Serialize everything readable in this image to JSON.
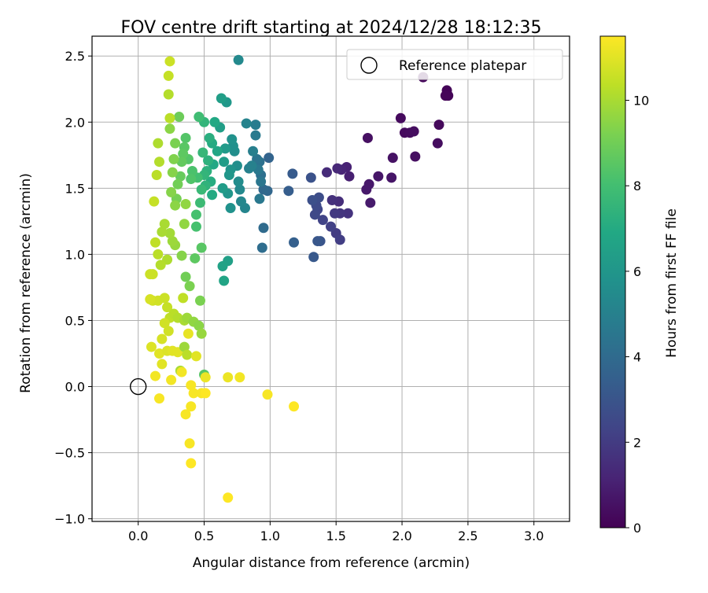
{
  "chart_data": {
    "type": "scatter",
    "title": "FOV centre drift starting at 2024/12/28 18:12:35",
    "xlabel": "Angular distance from reference (arcmin)",
    "ylabel": "Rotation from reference (arcmin)",
    "xlim": [
      -0.35,
      3.27
    ],
    "ylim": [
      -1.02,
      2.65
    ],
    "xticks": [
      0.0,
      0.5,
      1.0,
      1.5,
      2.0,
      2.5,
      3.0
    ],
    "xtick_labels": [
      "0.0",
      "0.5",
      "1.0",
      "1.5",
      "2.0",
      "2.5",
      "3.0"
    ],
    "yticks": [
      -1.0,
      -0.5,
      0.0,
      0.5,
      1.0,
      1.5,
      2.0,
      2.5
    ],
    "ytick_labels": [
      "−1.0",
      "−0.5",
      "0.0",
      "0.5",
      "1.0",
      "1.5",
      "2.0",
      "2.5"
    ],
    "grid": true,
    "legend": {
      "location": "top-right",
      "label": "Reference platepar"
    },
    "colorbar": {
      "label": "Hours from first FF file",
      "colormap": "viridis",
      "range": [
        0,
        11.5
      ],
      "ticks": [
        0,
        2,
        4,
        6,
        8,
        10
      ],
      "tick_labels": [
        "0",
        "2",
        "4",
        "6",
        "8",
        "10"
      ]
    },
    "reference_point": {
      "x": 0.0,
      "y": 0.0
    },
    "points": [
      [
        2.34,
        2.24,
        0.1
      ],
      [
        2.35,
        2.2,
        0.1
      ],
      [
        2.33,
        2.2,
        0.15
      ],
      [
        2.16,
        2.34,
        0.2
      ],
      [
        2.28,
        1.98,
        0.25
      ],
      [
        1.99,
        2.03,
        0.3
      ],
      [
        2.02,
        1.92,
        0.3
      ],
      [
        2.06,
        1.92,
        0.35
      ],
      [
        2.09,
        1.93,
        0.4
      ],
      [
        2.27,
        1.84,
        0.4
      ],
      [
        2.1,
        1.74,
        0.45
      ],
      [
        1.74,
        1.88,
        0.5
      ],
      [
        1.93,
        1.73,
        0.55
      ],
      [
        1.92,
        1.58,
        0.65
      ],
      [
        1.82,
        1.59,
        0.7
      ],
      [
        1.75,
        1.53,
        0.75
      ],
      [
        1.73,
        1.49,
        0.8
      ],
      [
        1.76,
        1.39,
        0.85
      ],
      [
        1.6,
        1.59,
        1.0
      ],
      [
        1.58,
        1.66,
        1.1
      ],
      [
        1.54,
        1.64,
        1.2
      ],
      [
        1.51,
        1.65,
        1.3
      ],
      [
        1.43,
        1.62,
        1.4
      ],
      [
        1.52,
        1.4,
        1.5
      ],
      [
        1.47,
        1.41,
        1.6
      ],
      [
        1.59,
        1.31,
        1.7
      ],
      [
        1.53,
        1.31,
        1.8
      ],
      [
        1.49,
        1.31,
        1.9
      ],
      [
        1.5,
        1.16,
        2.0
      ],
      [
        1.53,
        1.11,
        2.1
      ],
      [
        1.46,
        1.21,
        2.2
      ],
      [
        1.4,
        1.26,
        2.3
      ],
      [
        1.36,
        1.34,
        2.4
      ],
      [
        1.34,
        1.3,
        2.5
      ],
      [
        1.35,
        1.37,
        2.6
      ],
      [
        1.37,
        1.43,
        2.7
      ],
      [
        1.32,
        1.41,
        2.8
      ],
      [
        1.31,
        1.58,
        2.9
      ],
      [
        1.38,
        1.1,
        3.0
      ],
      [
        1.36,
        1.1,
        3.1
      ],
      [
        1.33,
        0.98,
        3.2
      ],
      [
        1.17,
        1.61,
        3.3
      ],
      [
        1.14,
        1.48,
        3.4
      ],
      [
        1.18,
        1.09,
        3.5
      ],
      [
        0.99,
        1.73,
        3.7
      ],
      [
        0.98,
        1.48,
        3.8
      ],
      [
        0.95,
        1.49,
        3.9
      ],
      [
        0.95,
        1.2,
        4.0
      ],
      [
        0.94,
        1.05,
        4.1
      ],
      [
        0.93,
        1.6,
        4.2
      ],
      [
        0.92,
        1.7,
        4.3
      ],
      [
        0.9,
        1.72,
        4.4
      ],
      [
        0.93,
        1.55,
        4.5
      ],
      [
        0.91,
        1.64,
        4.6
      ],
      [
        0.92,
        1.42,
        4.6
      ],
      [
        0.89,
        1.9,
        4.7
      ],
      [
        0.89,
        1.98,
        4.8
      ],
      [
        0.87,
        1.78,
        4.9
      ],
      [
        0.86,
        1.67,
        5.0
      ],
      [
        0.84,
        1.65,
        5.0
      ],
      [
        0.82,
        1.99,
        5.1
      ],
      [
        0.81,
        1.35,
        5.2
      ],
      [
        0.78,
        1.4,
        5.3
      ],
      [
        0.77,
        1.49,
        5.4
      ],
      [
        0.76,
        2.47,
        5.4
      ],
      [
        0.76,
        1.55,
        5.5
      ],
      [
        0.75,
        1.67,
        5.6
      ],
      [
        0.73,
        1.78,
        5.6
      ],
      [
        0.72,
        1.82,
        5.7
      ],
      [
        0.71,
        1.87,
        5.8
      ],
      [
        0.7,
        1.35,
        5.8
      ],
      [
        0.7,
        1.64,
        5.9
      ],
      [
        0.69,
        1.6,
        6.0
      ],
      [
        0.68,
        1.46,
        6.0
      ],
      [
        0.67,
        2.15,
        6.1
      ],
      [
        0.66,
        1.8,
        6.2
      ],
      [
        0.65,
        1.7,
        6.3
      ],
      [
        0.64,
        1.5,
        6.3
      ],
      [
        0.63,
        2.18,
        6.4
      ],
      [
        0.62,
        1.96,
        6.4
      ],
      [
        0.68,
        0.95,
        6.5
      ],
      [
        0.64,
        0.91,
        6.6
      ],
      [
        0.65,
        0.8,
        6.7
      ],
      [
        0.6,
        1.78,
        6.8
      ],
      [
        0.58,
        2.0,
        6.9
      ],
      [
        0.57,
        1.68,
        6.9
      ],
      [
        0.56,
        1.45,
        7.0
      ],
      [
        0.56,
        1.84,
        7.0
      ],
      [
        0.55,
        1.55,
        7.1
      ],
      [
        0.54,
        1.88,
        7.2
      ],
      [
        0.53,
        1.71,
        7.3
      ],
      [
        0.52,
        1.63,
        7.3
      ],
      [
        0.51,
        1.52,
        7.4
      ],
      [
        0.5,
        1.6,
        7.5
      ],
      [
        0.5,
        2.0,
        7.5
      ],
      [
        0.49,
        1.77,
        7.6
      ],
      [
        0.48,
        1.49,
        7.7
      ],
      [
        0.47,
        1.39,
        7.8
      ],
      [
        0.46,
        2.04,
        7.9
      ],
      [
        0.45,
        1.58,
        8.0
      ],
      [
        0.44,
        1.21,
        8.1
      ],
      [
        0.44,
        1.3,
        8.1
      ],
      [
        0.41,
        1.63,
        8.2
      ],
      [
        0.4,
        1.57,
        8.3
      ],
      [
        0.38,
        1.72,
        8.4
      ],
      [
        0.36,
        1.88,
        8.4
      ],
      [
        0.35,
        1.81,
        8.5
      ],
      [
        0.34,
        1.76,
        8.6
      ],
      [
        0.33,
        1.7,
        8.7
      ],
      [
        0.32,
        1.59,
        8.8
      ],
      [
        0.31,
        2.04,
        8.9
      ],
      [
        0.3,
        1.53,
        9.0
      ],
      [
        0.29,
        1.42,
        9.1
      ],
      [
        0.28,
        1.84,
        9.2
      ],
      [
        0.27,
        1.72,
        9.3
      ],
      [
        0.26,
        1.62,
        9.4
      ],
      [
        0.25,
        1.47,
        9.4
      ],
      [
        0.24,
        1.95,
        9.5
      ],
      [
        0.28,
        1.37,
        9.5
      ],
      [
        0.36,
        1.38,
        9.6
      ],
      [
        0.35,
        1.23,
        9.6
      ],
      [
        0.48,
        1.05,
        8.5
      ],
      [
        0.43,
        0.97,
        8.6
      ],
      [
        0.36,
        0.83,
        9.0
      ],
      [
        0.39,
        0.76,
        9.2
      ],
      [
        0.33,
        0.99,
        9.4
      ],
      [
        0.28,
        1.07,
        9.7
      ],
      [
        0.26,
        1.1,
        9.8
      ],
      [
        0.24,
        1.16,
        9.9
      ],
      [
        0.2,
        1.23,
        10.0
      ],
      [
        0.18,
        1.17,
        10.0
      ],
      [
        0.22,
        0.96,
        10.1
      ],
      [
        0.17,
        0.92,
        10.2
      ],
      [
        0.15,
        1.0,
        10.3
      ],
      [
        0.13,
        1.09,
        10.4
      ],
      [
        0.12,
        1.4,
        10.5
      ],
      [
        0.14,
        1.6,
        10.3
      ],
      [
        0.16,
        1.7,
        10.2
      ],
      [
        0.15,
        1.84,
        10.1
      ],
      [
        0.23,
        2.21,
        10.2
      ],
      [
        0.24,
        2.03,
        10.3
      ],
      [
        0.23,
        2.35,
        10.5
      ],
      [
        0.24,
        2.46,
        10.6
      ],
      [
        0.11,
        0.85,
        10.6
      ],
      [
        0.09,
        0.85,
        10.6
      ],
      [
        0.11,
        0.65,
        10.7
      ],
      [
        0.15,
        0.65,
        10.7
      ],
      [
        0.09,
        0.66,
        10.8
      ],
      [
        0.2,
        0.67,
        10.6
      ],
      [
        0.22,
        0.6,
        10.5
      ],
      [
        0.24,
        0.52,
        10.4
      ],
      [
        0.27,
        0.55,
        10.3
      ],
      [
        0.3,
        0.52,
        10.2
      ],
      [
        0.35,
        0.5,
        10.0
      ],
      [
        0.37,
        0.52,
        9.8
      ],
      [
        0.42,
        0.49,
        9.6
      ],
      [
        0.46,
        0.46,
        9.5
      ],
      [
        0.48,
        0.4,
        9.7
      ],
      [
        0.34,
        0.67,
        10.4
      ],
      [
        0.2,
        0.48,
        10.7
      ],
      [
        0.23,
        0.42,
        10.7
      ],
      [
        0.18,
        0.36,
        10.8
      ],
      [
        0.1,
        0.3,
        10.9
      ],
      [
        0.16,
        0.25,
        11.0
      ],
      [
        0.18,
        0.17,
        11.0
      ],
      [
        0.22,
        0.27,
        10.9
      ],
      [
        0.26,
        0.27,
        11.0
      ],
      [
        0.3,
        0.26,
        11.0
      ],
      [
        0.35,
        0.3,
        9.8
      ],
      [
        0.37,
        0.24,
        10.3
      ],
      [
        0.44,
        0.23,
        11.0
      ],
      [
        0.38,
        0.4,
        11.1
      ],
      [
        0.32,
        0.12,
        10.0
      ],
      [
        0.47,
        0.65,
        9.2
      ],
      [
        0.5,
        0.09,
        8.5
      ],
      [
        0.51,
        0.07,
        11.2
      ],
      [
        0.33,
        0.11,
        11.3
      ],
      [
        0.25,
        0.05,
        11.3
      ],
      [
        0.13,
        0.08,
        11.3
      ],
      [
        0.16,
        -0.09,
        11.4
      ],
      [
        0.4,
        0.01,
        11.4
      ],
      [
        0.42,
        -0.05,
        11.4
      ],
      [
        0.48,
        -0.05,
        11.4
      ],
      [
        0.51,
        -0.05,
        11.5
      ],
      [
        0.4,
        -0.15,
        11.4
      ],
      [
        0.36,
        -0.21,
        11.4
      ],
      [
        0.39,
        -0.43,
        11.4
      ],
      [
        0.4,
        -0.58,
        11.5
      ],
      [
        0.68,
        0.07,
        11.2
      ],
      [
        0.77,
        0.07,
        11.3
      ],
      [
        0.98,
        -0.06,
        11.4
      ],
      [
        1.18,
        -0.15,
        11.5
      ],
      [
        0.68,
        -0.84,
        11.5
      ]
    ]
  }
}
